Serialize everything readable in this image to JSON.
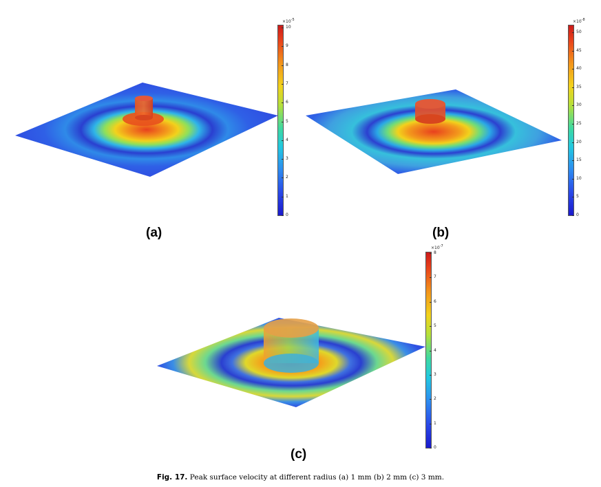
{
  "panels": [
    {
      "label": "(a)",
      "multiplier_base": "×10",
      "multiplier_exp": "-5",
      "ticks": [
        "10",
        "9",
        "8",
        "7",
        "6",
        "5",
        "4",
        "3",
        "2",
        "1",
        "0"
      ]
    },
    {
      "label": "(b)",
      "multiplier_base": "×10",
      "multiplier_exp": "-8",
      "ticks": [
        "50",
        "45",
        "40",
        "35",
        "30",
        "25",
        "20",
        "15",
        "10",
        "5",
        "0"
      ]
    },
    {
      "label": "(c)",
      "multiplier_base": "×10",
      "multiplier_exp": "-7",
      "ticks": [
        "8",
        "7",
        "6",
        "5",
        "4",
        "3",
        "2",
        "1",
        "0"
      ]
    }
  ],
  "caption": {
    "label": "Fig. 17.",
    "text": "Peak surface velocity at different radius (a) 1 mm (b) 2 mm (c) 3 mm."
  },
  "colors": {
    "plate_base": "#2f55e6",
    "ring_cyan": "#3fd0d8",
    "ring_yellow": "#f2d21c",
    "center_red": "#e8481e",
    "cylinder_red": "#e0452a"
  }
}
